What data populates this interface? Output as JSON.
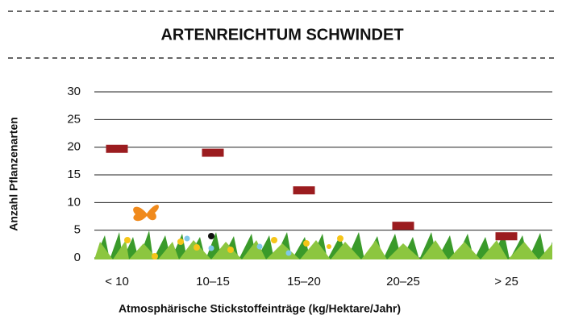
{
  "chart_data": {
    "type": "dot-bar",
    "title": "ARTENREICHTUM SCHWINDET",
    "y_label": "Anzahl Pflanzenarten",
    "x_label": "Atmosphärische Stickstoffeinträge (kg/Hektare/Jahr)",
    "categories": [
      "< 10",
      "10–15",
      "15–20",
      "20–25",
      "> 25"
    ],
    "values": [
      19.7,
      19,
      12.2,
      5.8,
      3.9
    ],
    "color": "#9b1c1f",
    "ylim": [
      0,
      30
    ],
    "yticks": [
      0,
      5,
      10,
      15,
      20,
      25,
      30
    ],
    "grid": true
  }
}
